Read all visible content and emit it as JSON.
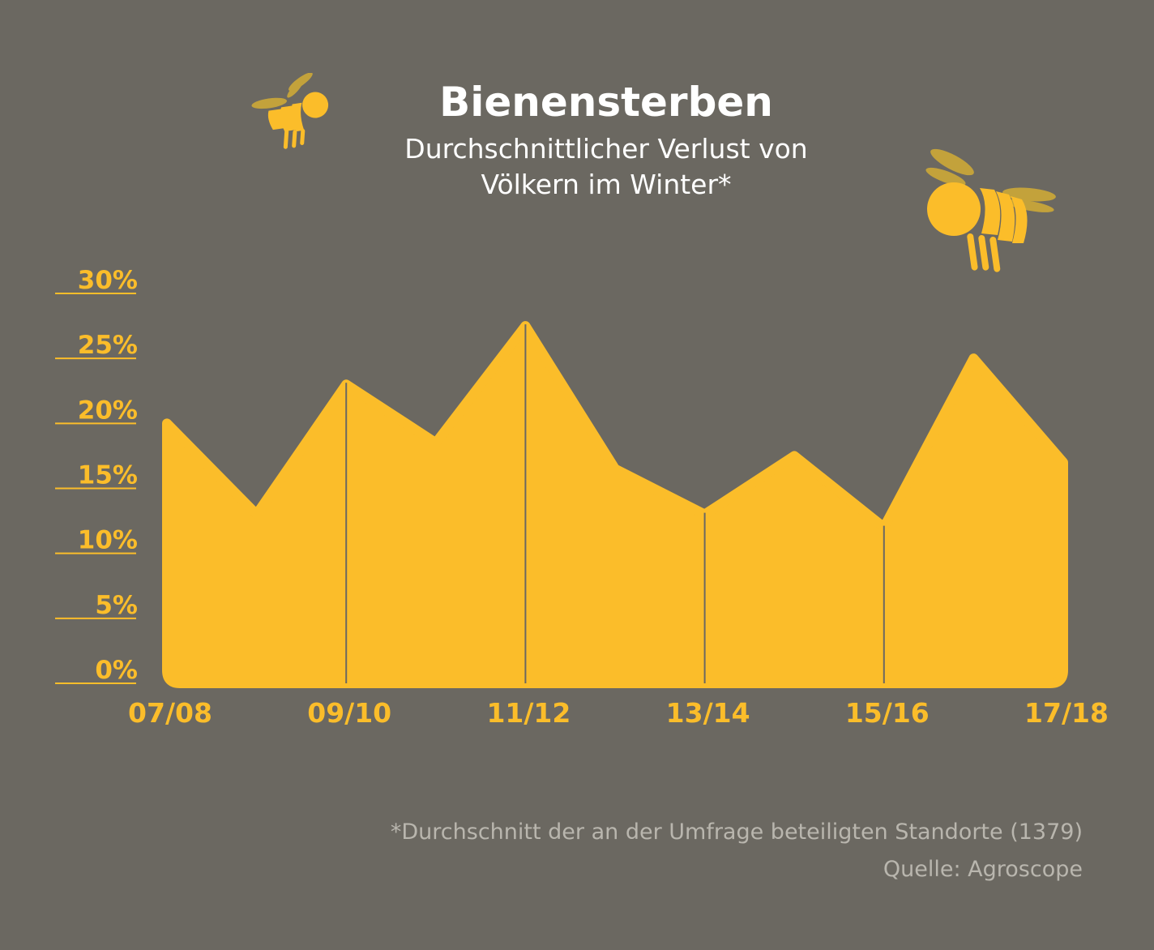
{
  "colors": {
    "background": "#6b6861",
    "accent": "#fbbd2a",
    "bee_wing": "#c3a23b",
    "text": "#ffffff",
    "muted_text": "#b9b6ae"
  },
  "chart_data": {
    "type": "area",
    "title": "Bienensterben",
    "subtitle_line1": "Durchschnittlicher Verlust von",
    "subtitle_line2": "Völkern im Winter*",
    "x": [
      0,
      1,
      2,
      3,
      4,
      5,
      6,
      7,
      8,
      9,
      10
    ],
    "x_tick_positions": [
      0,
      2,
      4,
      6,
      8,
      10
    ],
    "x_tick_labels": [
      "07/08",
      "09/10",
      "11/12",
      "13/14",
      "15/16",
      "17/18"
    ],
    "values": [
      20,
      13,
      23,
      18.5,
      27.5,
      16.5,
      13,
      17.5,
      12,
      25,
      17
    ],
    "y_ticks": [
      0,
      5,
      10,
      15,
      20,
      25,
      30
    ],
    "y_tick_labels": [
      "0%",
      "5%",
      "10%",
      "15%",
      "20%",
      "25%",
      "30%"
    ],
    "ylim": [
      0,
      30
    ],
    "xlabel": "",
    "ylabel": "",
    "grid": false,
    "legend": "none"
  },
  "footnote": "*Durchschnitt der an der Umfrage beteiligten Standorte (1379)",
  "source": "Quelle: Agroscope",
  "decorations": {
    "icons": [
      "bee-icon",
      "bee-icon"
    ]
  }
}
